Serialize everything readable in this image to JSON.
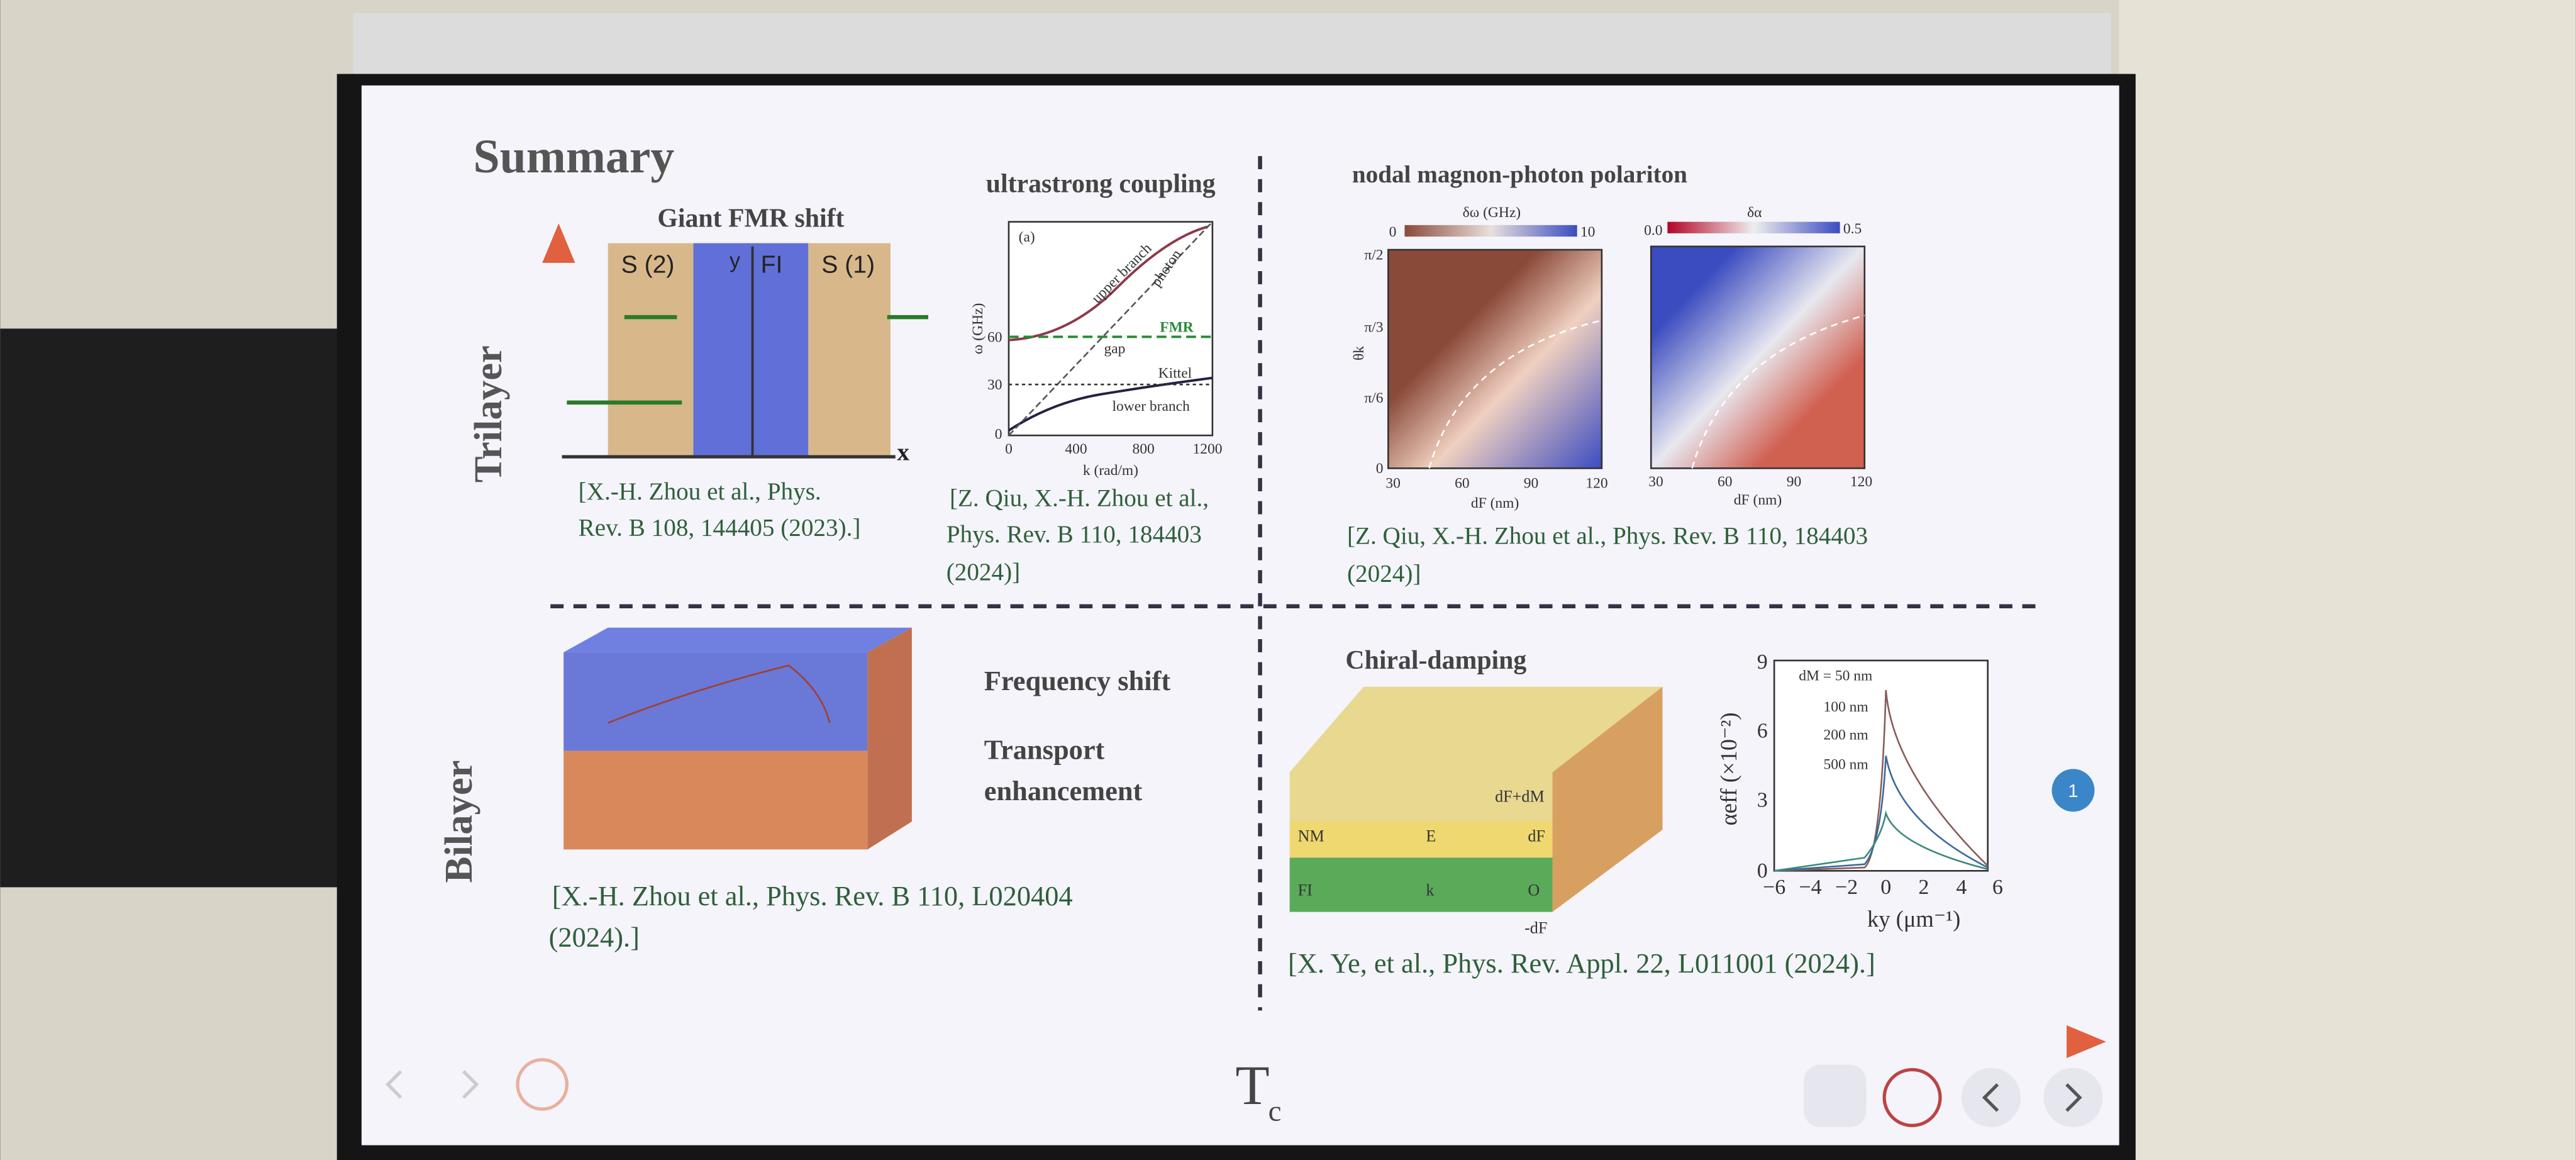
{
  "slide": {
    "title": "Summary",
    "axes": {
      "y_top": "Trilayer",
      "y_bottom": "Bilayer",
      "x": "T",
      "x_sub": "c"
    },
    "panel_fmr": {
      "heading": "Giant FMR shift",
      "labels": [
        "S (2)",
        "y",
        "FI",
        "S (1)",
        "x"
      ],
      "citation": [
        "[X.-H. Zhou et al., Phys.",
        "Rev. B 108, 144405 (2023).]"
      ]
    },
    "panel_coupling": {
      "heading": "ultrastrong coupling",
      "labels": [
        "upper branch",
        "photon",
        "FMR",
        "gap",
        "Kittel",
        "lower branch",
        "(a)"
      ],
      "y_label": "ω (GHz)",
      "x_label": "k (rad/m)",
      "x_ticks": [
        "0",
        "400",
        "800",
        "1200"
      ],
      "y_ticks": [
        "0",
        "30",
        "60"
      ],
      "citation": [
        "[Z. Qiu, X.-H. Zhou et al.,",
        "Phys. Rev. B 110, 184403",
        "(2024)]"
      ]
    },
    "panel_polariton": {
      "heading": "nodal magnon-photon polariton",
      "colorbar_left": {
        "label": "δω (GHz)",
        "min": "0",
        "max": "10"
      },
      "colorbar_right": {
        "label": "δα",
        "min": "0.0",
        "max": "0.5"
      },
      "y_ticks": [
        "π/2",
        "π/3",
        "π/6",
        "0"
      ],
      "x_ticks": [
        "30",
        "60",
        "90",
        "120"
      ],
      "x_label": "dF (nm)",
      "y_label": "θk",
      "citation": [
        "[Z. Qiu, X.-H. Zhou et al., Phys. Rev. B 110, 184403",
        "(2024)]"
      ]
    },
    "panel_bilayer": {
      "items": [
        "Frequency shift",
        "Transport",
        "enhancement"
      ],
      "citation": [
        "[X.-H. Zhou et al., Phys. Rev. B 110, L020404",
        "(2024).]"
      ]
    },
    "panel_chiral": {
      "heading": "Chiral-damping",
      "labels": [
        "NM",
        "FI",
        "E",
        "k",
        "dF+dM",
        "dF",
        "O",
        "-dF"
      ],
      "legend": [
        "dM = 50 nm",
        "100 nm",
        "200 nm",
        "500 nm"
      ],
      "y_label": "αeff (×10⁻²)",
      "x_label": "ky (μm⁻¹)",
      "y_ticks": [
        "0",
        "3",
        "6",
        "9"
      ],
      "x_ticks": [
        "−6",
        "−4",
        "−2",
        "0",
        "2",
        "4",
        "6"
      ],
      "citation": [
        "[X. Ye, et al., Phys. Rev. Appl. 22, L011001 (2024).]"
      ]
    },
    "page_badge": "1"
  }
}
